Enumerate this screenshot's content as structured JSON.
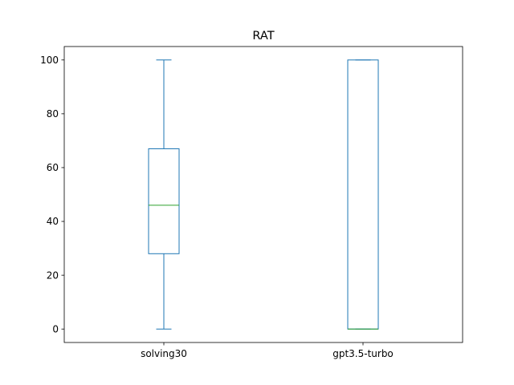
{
  "chart_data": {
    "type": "box",
    "title": "RAT",
    "xlabel": "",
    "ylabel": "",
    "categories": [
      "solving30",
      "gpt3.5-turbo"
    ],
    "boxes": [
      {
        "category": "solving30",
        "whisker_low": 0,
        "q1": 28,
        "median": 46,
        "q3": 67,
        "whisker_high": 100
      },
      {
        "category": "gpt3.5-turbo",
        "whisker_low": 0,
        "q1": 0,
        "median": 0,
        "q3": 100,
        "whisker_high": 100
      }
    ],
    "ylim": [
      -5,
      105
    ],
    "yticks": [
      "0",
      "20",
      "40",
      "60",
      "80",
      "100"
    ],
    "grid": false,
    "colors": {
      "box": "#1f77b4",
      "median": "#2ca02c",
      "axes": "#000000"
    }
  }
}
